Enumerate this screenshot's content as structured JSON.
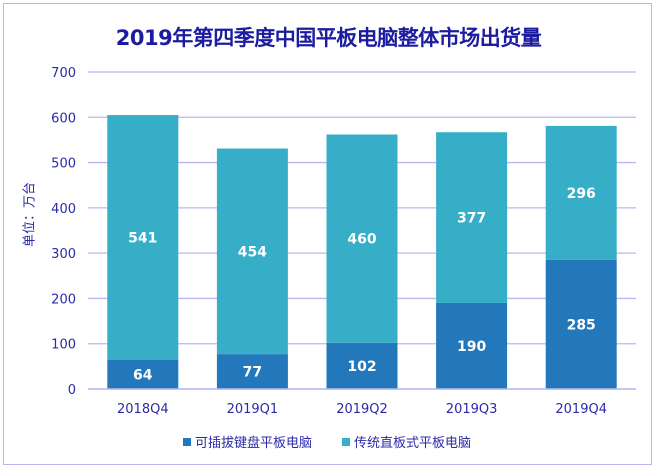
{
  "chart_data": {
    "type": "bar",
    "stacked": true,
    "title": "2019年第四季度中国平板电脑整体市场出货量",
    "ylabel": "单位：万台",
    "xlabel": "",
    "ylim": [
      0,
      700
    ],
    "yticks": [
      0,
      100,
      200,
      300,
      400,
      500,
      600,
      700
    ],
    "grid": true,
    "legend_position": "bottom",
    "categories": [
      "2018Q4",
      "2019Q1",
      "2019Q2",
      "2019Q3",
      "2019Q4"
    ],
    "series": [
      {
        "name": "可插拔键盘平板电脑",
        "color": "#2278bb",
        "values": [
          64,
          77,
          102,
          190,
          285
        ]
      },
      {
        "name": "传统直板式平板电脑",
        "color": "#37aec8",
        "values": [
          541,
          454,
          460,
          377,
          296
        ]
      }
    ]
  }
}
